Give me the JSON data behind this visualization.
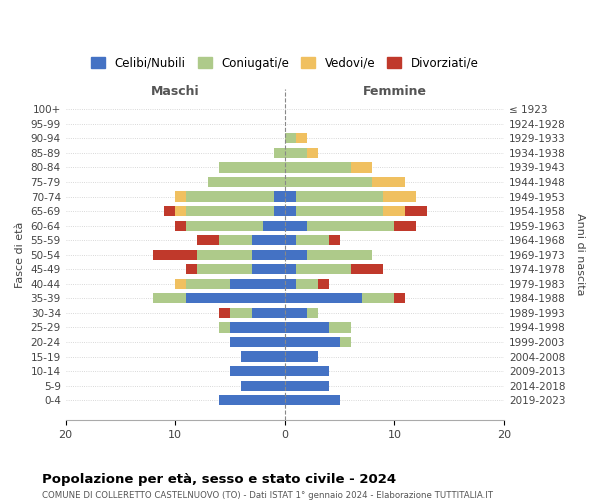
{
  "age_groups": [
    "100+",
    "95-99",
    "90-94",
    "85-89",
    "80-84",
    "75-79",
    "70-74",
    "65-69",
    "60-64",
    "55-59",
    "50-54",
    "45-49",
    "40-44",
    "35-39",
    "30-34",
    "25-29",
    "20-24",
    "15-19",
    "10-14",
    "5-9",
    "0-4"
  ],
  "birth_years": [
    "≤ 1923",
    "1924-1928",
    "1929-1933",
    "1934-1938",
    "1939-1943",
    "1944-1948",
    "1949-1953",
    "1954-1958",
    "1959-1963",
    "1964-1968",
    "1969-1973",
    "1974-1978",
    "1979-1983",
    "1984-1988",
    "1989-1993",
    "1994-1998",
    "1999-2003",
    "2004-2008",
    "2009-2013",
    "2014-2018",
    "2019-2023"
  ],
  "colors": {
    "celibi": "#4472C4",
    "coniugati": "#AECA8A",
    "vedovi": "#F0C060",
    "divorziati": "#C0392B"
  },
  "maschi": {
    "celibi": [
      0,
      0,
      0,
      0,
      0,
      0,
      1,
      1,
      2,
      3,
      3,
      3,
      5,
      9,
      3,
      5,
      5,
      4,
      5,
      4,
      6
    ],
    "coniugati": [
      0,
      0,
      0,
      1,
      6,
      7,
      8,
      8,
      7,
      3,
      5,
      5,
      4,
      3,
      2,
      1,
      0,
      0,
      0,
      0,
      0
    ],
    "vedovi": [
      0,
      0,
      0,
      0,
      0,
      0,
      1,
      1,
      0,
      0,
      0,
      0,
      1,
      0,
      0,
      0,
      0,
      0,
      0,
      0,
      0
    ],
    "divorziati": [
      0,
      0,
      0,
      0,
      0,
      0,
      0,
      1,
      1,
      2,
      4,
      1,
      0,
      0,
      1,
      0,
      0,
      0,
      0,
      0,
      0
    ]
  },
  "femmine": {
    "celibi": [
      0,
      0,
      0,
      0,
      0,
      0,
      1,
      1,
      2,
      1,
      2,
      1,
      1,
      7,
      2,
      4,
      5,
      3,
      4,
      4,
      5
    ],
    "coniugati": [
      0,
      0,
      1,
      2,
      6,
      8,
      8,
      8,
      8,
      3,
      6,
      5,
      2,
      3,
      1,
      2,
      1,
      0,
      0,
      0,
      0
    ],
    "vedovi": [
      0,
      0,
      1,
      1,
      2,
      3,
      3,
      2,
      0,
      0,
      0,
      0,
      0,
      0,
      0,
      0,
      0,
      0,
      0,
      0,
      0
    ],
    "divorziati": [
      0,
      0,
      0,
      0,
      0,
      0,
      0,
      2,
      2,
      1,
      0,
      3,
      1,
      1,
      0,
      0,
      0,
      0,
      0,
      0,
      0
    ]
  },
  "xlim": 20,
  "title": "Popolazione per età, sesso e stato civile - 2024",
  "subtitle": "COMUNE DI COLLERETTO CASTELNUOVO (TO) - Dati ISTAT 1° gennaio 2024 - Elaborazione TUTTITALIA.IT",
  "ylabel": "Fasce di età",
  "ylabel2": "Anni di nascita",
  "xlabel_maschi": "Maschi",
  "xlabel_femmine": "Femmine",
  "legend_labels": [
    "Celibi/Nubili",
    "Coniugati/e",
    "Vedovi/e",
    "Divorziati/e"
  ]
}
